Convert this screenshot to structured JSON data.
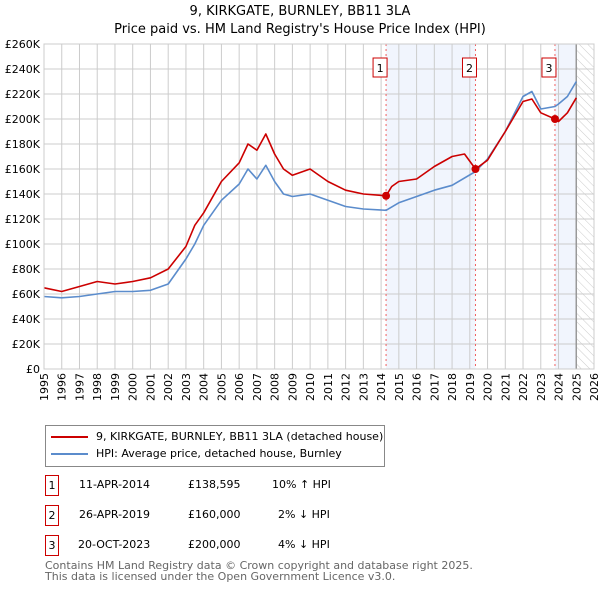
{
  "chart_data": {
    "type": "line",
    "title": "9, KIRKGATE, BURNLEY, BB11 3LA",
    "subtitle": "Price paid vs. HM Land Registry's House Price Index (HPI)",
    "xlim": [
      1995,
      2026
    ],
    "ylim": [
      0,
      260000
    ],
    "x_ticks": [
      "1995",
      "1996",
      "1997",
      "1998",
      "1999",
      "2000",
      "2001",
      "2002",
      "2003",
      "2004",
      "2005",
      "2006",
      "2007",
      "2008",
      "2009",
      "2010",
      "2011",
      "2012",
      "2013",
      "2014",
      "2015",
      "2016",
      "2017",
      "2018",
      "2019",
      "2020",
      "2021",
      "2022",
      "2023",
      "2024",
      "2025",
      "2026"
    ],
    "y_ticks": [
      "£0",
      "£20K",
      "£40K",
      "£60K",
      "£80K",
      "£100K",
      "£120K",
      "£140K",
      "£160K",
      "£180K",
      "£200K",
      "£220K",
      "£240K",
      "£260K"
    ],
    "grid": true,
    "series": [
      {
        "name": "9, KIRKGATE, BURNLEY, BB11 3LA (detached house)",
        "color": "#cc0000",
        "x": [
          1995,
          1996,
          1997,
          1998,
          1999,
          2000,
          2001,
          2002,
          2003,
          2003.5,
          2004,
          2005,
          2006,
          2006.5,
          2007,
          2007.5,
          2008,
          2008.5,
          2009,
          2010,
          2011,
          2012,
          2013,
          2014.28,
          2014.6,
          2015,
          2016,
          2017,
          2018,
          2018.7,
          2019.32,
          2020,
          2021,
          2022,
          2022.5,
          2023,
          2023.8,
          2024,
          2024.5,
          2025
        ],
        "y": [
          65000,
          62000,
          66000,
          70000,
          68000,
          70000,
          73000,
          80000,
          98000,
          115000,
          125000,
          150000,
          165000,
          180000,
          175000,
          188000,
          172000,
          160000,
          155000,
          160000,
          150000,
          143000,
          140000,
          138595,
          146000,
          150000,
          152000,
          162000,
          170000,
          172000,
          160000,
          167000,
          190000,
          214000,
          216000,
          205000,
          200000,
          198000,
          205000,
          217000
        ]
      },
      {
        "name": "HPI: Average price, detached house, Burnley",
        "color": "#5b8ccc",
        "x": [
          1995,
          1996,
          1997,
          1998,
          1999,
          2000,
          2001,
          2002,
          2003,
          2003.5,
          2004,
          2005,
          2006,
          2006.5,
          2007,
          2007.5,
          2008,
          2008.5,
          2009,
          2010,
          2011,
          2012,
          2013,
          2014.28,
          2015,
          2016,
          2017,
          2018,
          2019.32,
          2020,
          2021,
          2022,
          2022.5,
          2023,
          2023.8,
          2024,
          2024.5,
          2025
        ],
        "y": [
          58000,
          57000,
          58000,
          60000,
          62000,
          62000,
          63000,
          68000,
          88000,
          100000,
          115000,
          135000,
          148000,
          160000,
          152000,
          163000,
          150000,
          140000,
          138000,
          140000,
          135000,
          130000,
          128000,
          127000,
          133000,
          138000,
          143000,
          147000,
          158000,
          168000,
          190000,
          218000,
          222000,
          208000,
          210000,
          212000,
          218000,
          230000
        ]
      }
    ],
    "sales": [
      {
        "label": "1",
        "x": 2014.28,
        "y": 138595
      },
      {
        "label": "2",
        "x": 2019.32,
        "y": 160000
      },
      {
        "label": "3",
        "x": 2023.8,
        "y": 200000
      }
    ]
  },
  "legend": {
    "property": "9, KIRKGATE, BURNLEY, BB11 3LA (detached house)",
    "hpi": "HPI: Average price, detached house, Burnley"
  },
  "table": [
    {
      "num": "1",
      "date": "11-APR-2014",
      "price": "£138,595",
      "hpi": "10% ↑ HPI"
    },
    {
      "num": "2",
      "date": "26-APR-2019",
      "price": "£160,000",
      "hpi": "2% ↓ HPI"
    },
    {
      "num": "3",
      "date": "20-OCT-2023",
      "price": "£200,000",
      "hpi": "4% ↓ HPI"
    }
  ],
  "footer": {
    "line1": "Contains HM Land Registry data © Crown copyright and database right 2025.",
    "line2": "This data is licensed under the Open Government Licence v3.0."
  }
}
